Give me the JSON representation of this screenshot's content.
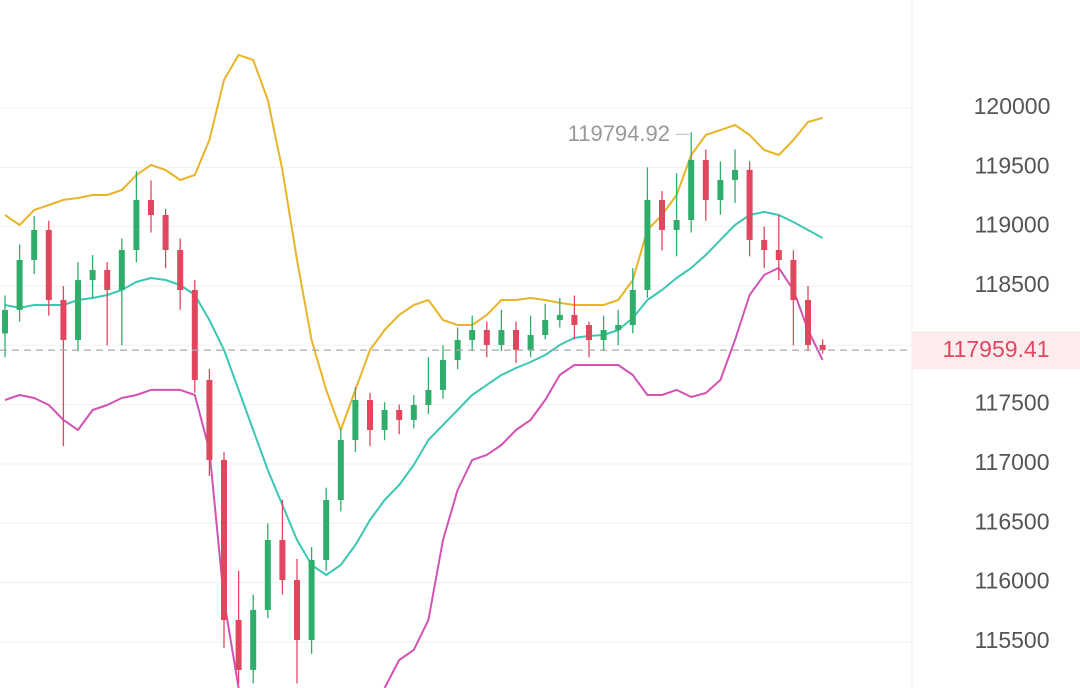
{
  "chart_data": {
    "type": "candlestick",
    "open": [
      118100,
      118298,
      118719,
      118972,
      118382,
      118045,
      118550,
      118635,
      118466,
      118803,
      119225,
      119098,
      118803,
      118466,
      117708,
      117034,
      115685,
      115264,
      115770,
      116359,
      116022,
      115517,
      116191,
      116696,
      117202,
      117539,
      117286,
      117455,
      117371,
      117497,
      117624,
      117876,
      118045,
      118129,
      118003,
      118129,
      117961,
      118087,
      118213,
      118256,
      118171,
      118045,
      118129,
      118171,
      118466,
      119225,
      118972,
      119056,
      119562,
      119225,
      119394,
      119478,
      118888,
      118803,
      118719,
      118382,
      118003
    ],
    "high": [
      118420,
      118850,
      119090,
      119050,
      118500,
      118700,
      118760,
      118700,
      118900,
      119470,
      119390,
      119150,
      118900,
      118550,
      117800,
      117100,
      116100,
      115900,
      116500,
      116700,
      116200,
      116300,
      116800,
      117300,
      117650,
      117600,
      117520,
      117500,
      117580,
      117900,
      118000,
      118150,
      118250,
      118200,
      118300,
      118200,
      118250,
      118350,
      118400,
      118420,
      118200,
      118250,
      118300,
      118650,
      119500,
      119300,
      119450,
      119794.92,
      119650,
      119550,
      119650,
      119550,
      119000,
      119100,
      118800,
      118500,
      118050
    ],
    "low": [
      117900,
      118200,
      118600,
      118250,
      117150,
      117950,
      118400,
      118000,
      118000,
      118700,
      118950,
      118650,
      118300,
      117600,
      116900,
      115450,
      115150,
      115150,
      115700,
      115900,
      115150,
      115400,
      116100,
      116600,
      117100,
      117150,
      117200,
      117250,
      117300,
      117420,
      117550,
      117800,
      117950,
      117900,
      117950,
      117850,
      117900,
      118050,
      118150,
      118050,
      117900,
      117950,
      118000,
      118100,
      118400,
      118800,
      118750,
      118950,
      119050,
      119100,
      119200,
      118750,
      118650,
      118550,
      118000,
      117950,
      117930
    ],
    "close": [
      118298,
      118719,
      118972,
      118382,
      118045,
      118550,
      118635,
      118466,
      118803,
      119225,
      119098,
      118803,
      118466,
      117708,
      117034,
      115685,
      115264,
      115770,
      116359,
      116022,
      115517,
      116191,
      116696,
      117202,
      117539,
      117286,
      117455,
      117371,
      117497,
      117624,
      117876,
      118045,
      118129,
      118003,
      118129,
      117961,
      118087,
      118213,
      118256,
      118171,
      118045,
      118129,
      118171,
      118466,
      119225,
      118972,
      119056,
      119562,
      119225,
      119394,
      119478,
      118888,
      118803,
      118719,
      118382,
      118003,
      117959.41
    ],
    "up_color": "#2eae6a",
    "down_color": "#e0475f",
    "lines": [
      {
        "color": "#e8b52a",
        "values": [
          119098,
          119014,
          119140,
          119182,
          119225,
          119241,
          119267,
          119267,
          119309,
          119435,
          119520,
          119477,
          119393,
          119435,
          119730,
          120236,
          120447,
          120404,
          120067,
          119477,
          118719,
          118045,
          117624,
          117286,
          117624,
          117961,
          118129,
          118256,
          118340,
          118382,
          118213,
          118171,
          118171,
          118256,
          118382,
          118382,
          118399,
          118382,
          118357,
          118340,
          118340,
          118340,
          118382,
          118550,
          118972,
          119098,
          119267,
          119604,
          119772,
          119814,
          119857,
          119772,
          119646,
          119604,
          119730,
          119882,
          119916
        ]
      },
      {
        "color": "#3cc7b4",
        "values": [
          118340,
          118315,
          118340,
          118340,
          118340,
          118382,
          118399,
          118424,
          118466,
          118534,
          118567,
          118550,
          118508,
          118424,
          118213,
          117961,
          117624,
          117286,
          116949,
          116654,
          116359,
          116149,
          116064,
          116149,
          116317,
          116528,
          116696,
          116823,
          116992,
          117202,
          117329,
          117455,
          117581,
          117666,
          117750,
          117809,
          117859,
          117918,
          118003,
          118062,
          118079,
          118087,
          118129,
          118230,
          118382,
          118466,
          118567,
          118652,
          118761,
          118888,
          119014,
          119098,
          119124,
          119098,
          119039,
          118972,
          118904
        ]
      },
      {
        "color": "#d352b4",
        "values": [
          117539,
          117581,
          117556,
          117497,
          117371,
          117286,
          117455,
          117497,
          117556,
          117581,
          117624,
          117624,
          117624,
          117581,
          117118,
          115854,
          115112,
          null,
          null,
          null,
          null,
          null,
          null,
          null,
          null,
          null,
          115112,
          115348,
          115433,
          115685,
          116359,
          116781,
          117034,
          117076,
          117160,
          117286,
          117371,
          117539,
          117750,
          117834,
          117834,
          117834,
          117834,
          117750,
          117581,
          117581,
          117624,
          117564,
          117598,
          117708,
          118045,
          118424,
          118593,
          118652,
          118466,
          118129,
          117876
        ]
      }
    ],
    "ylim": [
      115112,
      120910
    ],
    "yticks": [
      115500,
      116000,
      116500,
      117000,
      117500,
      118000,
      118500,
      119000,
      119500,
      120000
    ],
    "grid": true
  }
}
